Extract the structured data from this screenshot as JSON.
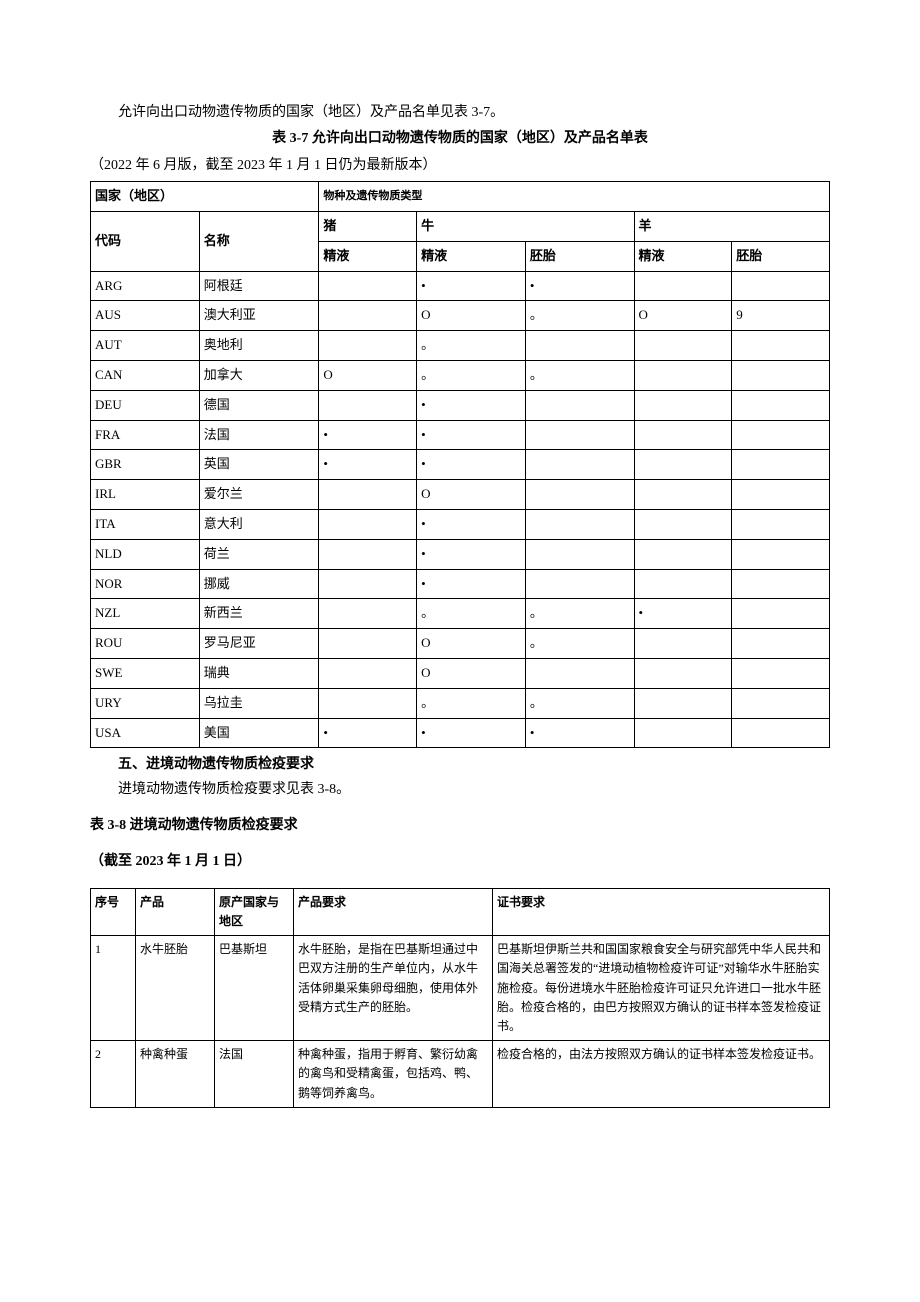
{
  "intro_line": "允许向出口动物遗传物质的国家（地区）及产品名单见表 3-7。",
  "table37": {
    "caption": "表 3-7 允许向出口动物遗传物质的国家（地区）及产品名单表",
    "version_note": "（2022 年 6 月版，截至 2023 年 1 月 1 日仍为最新版本）",
    "head": {
      "country_region": "国家（地区）",
      "species_type": "物种及遗传物质类型",
      "code": "代码",
      "name": "名称",
      "pig": "猪",
      "cattle": "牛",
      "sheep": "羊",
      "semen": "精液",
      "embryo": "胚胎"
    },
    "rows": [
      {
        "code": "ARG",
        "name": "阿根廷",
        "pig_semen": "",
        "cattle_semen": "•",
        "cattle_embryo": "•",
        "sheep_semen": "",
        "sheep_embryo": ""
      },
      {
        "code": "AUS",
        "name": "澳大利亚",
        "pig_semen": "",
        "cattle_semen": "O",
        "cattle_embryo": "。",
        "sheep_semen": "O",
        "sheep_embryo": "9"
      },
      {
        "code": "AUT",
        "name": "奥地利",
        "pig_semen": "",
        "cattle_semen": "。",
        "cattle_embryo": "",
        "sheep_semen": "",
        "sheep_embryo": ""
      },
      {
        "code": "CAN",
        "name": "加拿大",
        "pig_semen": "O",
        "cattle_semen": "。",
        "cattle_embryo": "。",
        "sheep_semen": "",
        "sheep_embryo": ""
      },
      {
        "code": "DEU",
        "name": "德国",
        "pig_semen": "",
        "cattle_semen": "•",
        "cattle_embryo": "",
        "sheep_semen": "",
        "sheep_embryo": ""
      },
      {
        "code": "FRA",
        "name": "法国",
        "pig_semen": "•",
        "cattle_semen": "•",
        "cattle_embryo": "",
        "sheep_semen": "",
        "sheep_embryo": ""
      },
      {
        "code": "GBR",
        "name": "英国",
        "pig_semen": "•",
        "cattle_semen": "•",
        "cattle_embryo": "",
        "sheep_semen": "",
        "sheep_embryo": ""
      },
      {
        "code": "IRL",
        "name": "爱尔兰",
        "pig_semen": "",
        "cattle_semen": "O",
        "cattle_embryo": "",
        "sheep_semen": "",
        "sheep_embryo": ""
      },
      {
        "code": "ITA",
        "name": "意大利",
        "pig_semen": "",
        "cattle_semen": "•",
        "cattle_embryo": "",
        "sheep_semen": "",
        "sheep_embryo": ""
      },
      {
        "code": "NLD",
        "name": "荷兰",
        "pig_semen": "",
        "cattle_semen": "•",
        "cattle_embryo": "",
        "sheep_semen": "",
        "sheep_embryo": ""
      },
      {
        "code": "NOR",
        "name": "挪威",
        "pig_semen": "",
        "cattle_semen": "•",
        "cattle_embryo": "",
        "sheep_semen": "",
        "sheep_embryo": ""
      },
      {
        "code": "NZL",
        "name": "新西兰",
        "pig_semen": "",
        "cattle_semen": "。",
        "cattle_embryo": "。",
        "sheep_semen": "•",
        "sheep_embryo": ""
      },
      {
        "code": "ROU",
        "name": "罗马尼亚",
        "pig_semen": "",
        "cattle_semen": "O",
        "cattle_embryo": "。",
        "sheep_semen": "",
        "sheep_embryo": ""
      },
      {
        "code": "SWE",
        "name": "瑞典",
        "pig_semen": "",
        "cattle_semen": "O",
        "cattle_embryo": "",
        "sheep_semen": "",
        "sheep_embryo": ""
      },
      {
        "code": "URY",
        "name": "乌拉圭",
        "pig_semen": "",
        "cattle_semen": "。",
        "cattle_embryo": "。",
        "sheep_semen": "",
        "sheep_embryo": ""
      },
      {
        "code": "USA",
        "name": "美国",
        "pig_semen": "•",
        "cattle_semen": "•",
        "cattle_embryo": "•",
        "sheep_semen": "",
        "sheep_embryo": ""
      }
    ]
  },
  "section5_title": "五、进境动物遗传物质检疫要求",
  "section5_line": "进境动物遗传物质检疫要求见表 3-8。",
  "table38": {
    "caption": "表 3-8 进境动物遗传物质检疫要求",
    "version_note": "（截至 2023 年 1 月 1 日）",
    "head": {
      "no": "序号",
      "product": "产品",
      "origin": "原产国家与地区",
      "prod_req": "产品要求",
      "cert_req": "证书要求"
    },
    "rows": [
      {
        "no": "1",
        "product": "水牛胚胎",
        "origin": "巴基斯坦",
        "prod_req": "水牛胚胎，是指在巴基斯坦通过中巴双方注册的生产单位内，从水牛活体卵巢采集卵母细胞，使用体外受精方式生产的胚胎。",
        "cert_req": "巴基斯坦伊斯兰共和国国家粮食安全与研究部凭中华人民共和国海关总署签发的“进境动植物检疫许可证”对输华水牛胚胎实施检疫。每份进境水牛胚胎检疫许可证只允许进口一批水牛胚胎。检疫合格的，由巴方按照双方确认的证书样本签发检疫证书。"
      },
      {
        "no": "2",
        "product": "种禽种蛋",
        "origin": "法国",
        "prod_req": "种禽种蛋，指用于孵育、繁衍幼禽的禽鸟和受精禽蛋，包括鸡、鸭、鹅等饲养禽鸟。",
        "cert_req": "检疫合格的，由法方按照双方确认的证书样本签发检疫证书。"
      }
    ]
  }
}
